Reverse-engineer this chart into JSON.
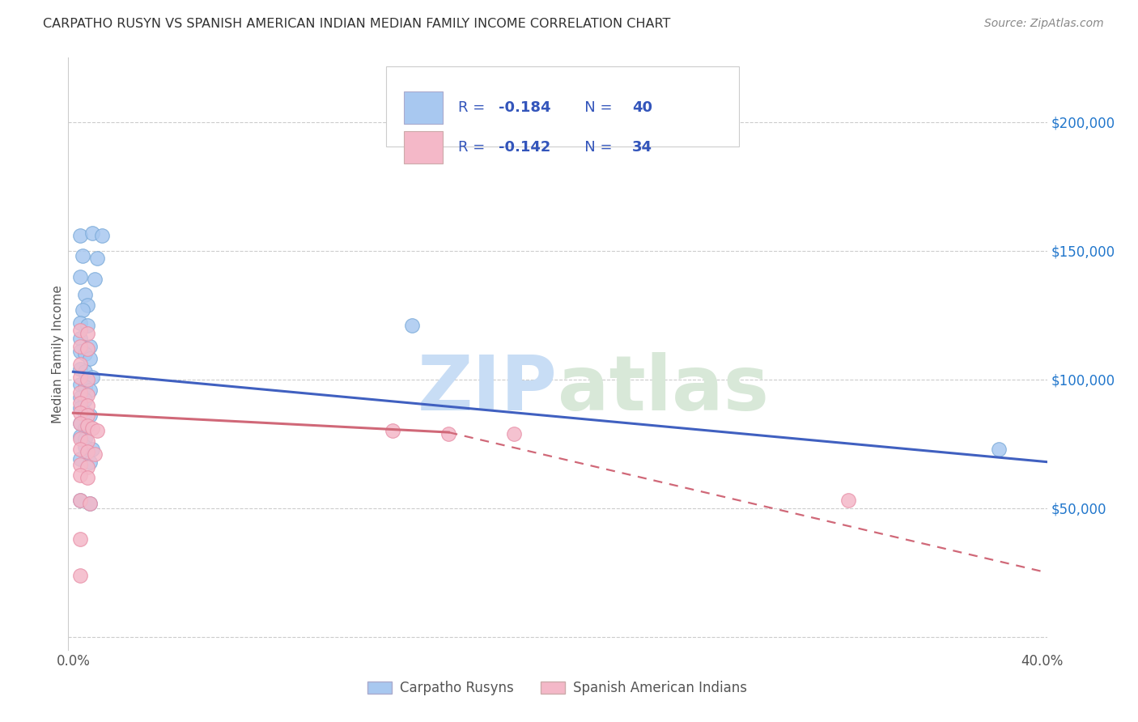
{
  "title": "CARPATHO RUSYN VS SPANISH AMERICAN INDIAN MEDIAN FAMILY INCOME CORRELATION CHART",
  "source": "Source: ZipAtlas.com",
  "ylabel": "Median Family Income",
  "xlim": [
    -0.002,
    0.402
  ],
  "ylim": [
    -5000,
    225000
  ],
  "yticks": [
    0,
    50000,
    100000,
    150000,
    200000
  ],
  "xticks": [
    0.0,
    0.1,
    0.2,
    0.3,
    0.4
  ],
  "xtick_labels": [
    "0.0%",
    "",
    "",
    "",
    "40.0%"
  ],
  "blue_color": "#a8c8f0",
  "pink_color": "#f4b8c8",
  "blue_edge_color": "#7aaad8",
  "pink_edge_color": "#e890a8",
  "blue_line_color": "#4060c0",
  "pink_line_color": "#d06878",
  "legend_text_color": "#3355bb",
  "legend_r_color": "#3355bb",
  "legend_n_color": "#3355bb",
  "blue_dots": [
    [
      0.003,
      156000
    ],
    [
      0.008,
      157000
    ],
    [
      0.012,
      156000
    ],
    [
      0.004,
      148000
    ],
    [
      0.01,
      147000
    ],
    [
      0.003,
      140000
    ],
    [
      0.009,
      139000
    ],
    [
      0.005,
      133000
    ],
    [
      0.006,
      129000
    ],
    [
      0.004,
      127000
    ],
    [
      0.003,
      122000
    ],
    [
      0.006,
      121000
    ],
    [
      0.003,
      116000
    ],
    [
      0.007,
      113000
    ],
    [
      0.003,
      111000
    ],
    [
      0.005,
      110000
    ],
    [
      0.007,
      108000
    ],
    [
      0.003,
      104000
    ],
    [
      0.005,
      103000
    ],
    [
      0.008,
      101000
    ],
    [
      0.003,
      98000
    ],
    [
      0.005,
      97000
    ],
    [
      0.007,
      96000
    ],
    [
      0.003,
      93000
    ],
    [
      0.005,
      92000
    ],
    [
      0.003,
      89000
    ],
    [
      0.005,
      87000
    ],
    [
      0.007,
      86000
    ],
    [
      0.003,
      83000
    ],
    [
      0.005,
      81000
    ],
    [
      0.003,
      78000
    ],
    [
      0.005,
      77000
    ],
    [
      0.005,
      74000
    ],
    [
      0.008,
      73000
    ],
    [
      0.003,
      69000
    ],
    [
      0.007,
      68000
    ],
    [
      0.003,
      53000
    ],
    [
      0.007,
      52000
    ],
    [
      0.382,
      73000
    ],
    [
      0.14,
      121000
    ]
  ],
  "pink_dots": [
    [
      0.003,
      101000
    ],
    [
      0.006,
      100000
    ],
    [
      0.003,
      95000
    ],
    [
      0.006,
      94000
    ],
    [
      0.003,
      91000
    ],
    [
      0.006,
      90000
    ],
    [
      0.003,
      87000
    ],
    [
      0.006,
      86000
    ],
    [
      0.003,
      83000
    ],
    [
      0.006,
      82000
    ],
    [
      0.008,
      81000
    ],
    [
      0.01,
      80000
    ],
    [
      0.003,
      77000
    ],
    [
      0.006,
      76000
    ],
    [
      0.003,
      73000
    ],
    [
      0.006,
      72000
    ],
    [
      0.009,
      71000
    ],
    [
      0.003,
      67000
    ],
    [
      0.006,
      66000
    ],
    [
      0.003,
      63000
    ],
    [
      0.006,
      62000
    ],
    [
      0.132,
      80000
    ],
    [
      0.155,
      79000
    ],
    [
      0.182,
      79000
    ],
    [
      0.003,
      53000
    ],
    [
      0.007,
      52000
    ],
    [
      0.003,
      38000
    ],
    [
      0.003,
      24000
    ],
    [
      0.32,
      53000
    ],
    [
      0.003,
      113000
    ],
    [
      0.006,
      112000
    ],
    [
      0.003,
      119000
    ],
    [
      0.006,
      118000
    ],
    [
      0.003,
      106000
    ]
  ],
  "blue_trendline": [
    [
      0.0,
      103000
    ],
    [
      0.402,
      68000
    ]
  ],
  "pink_trendline_solid": [
    [
      0.0,
      87000
    ],
    [
      0.155,
      79500
    ]
  ],
  "pink_trendline_dashed": [
    [
      0.155,
      79500
    ],
    [
      0.402,
      25000
    ]
  ],
  "watermark_zip": "ZIP",
  "watermark_atlas": "atlas",
  "background_color": "#ffffff",
  "grid_color": "#cccccc",
  "dot_size": 160
}
